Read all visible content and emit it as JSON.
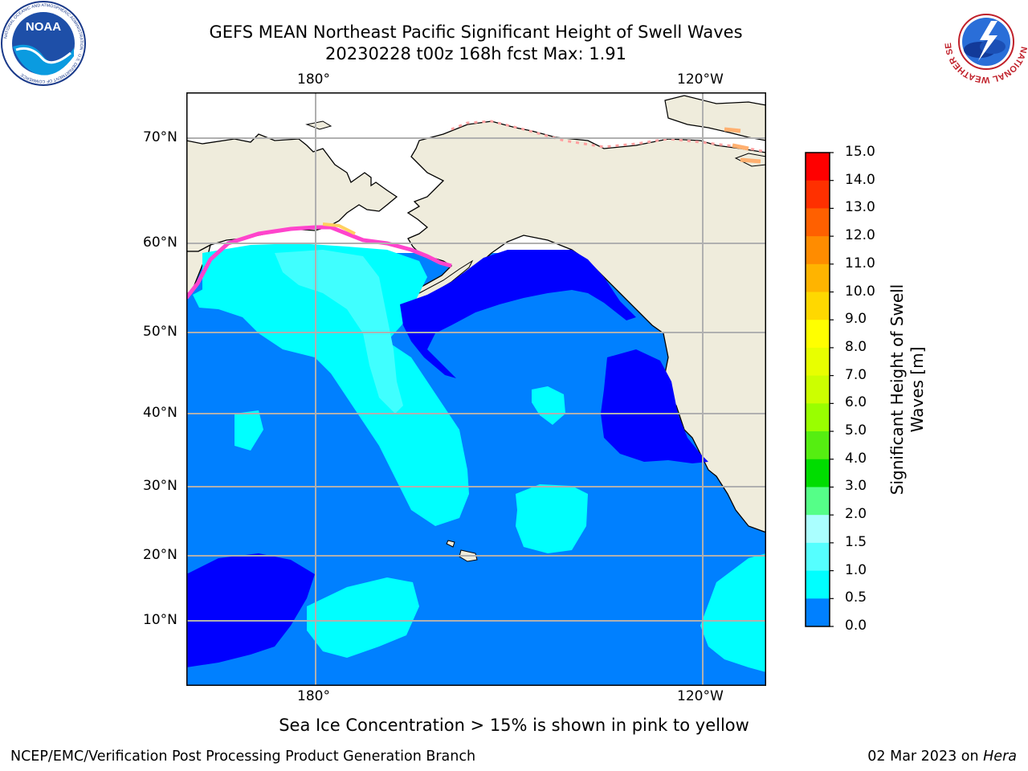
{
  "header": {
    "title_line1": "GEFS MEAN Northeast Pacific Significant Height of Swell Waves",
    "title_line2": "20230228 t00z 168h fcst   Max: 1.91"
  },
  "logos": {
    "noaa_text": "NOAA",
    "noaa_ring_text": "NATIONAL OCEANIC AND ATMOSPHERIC ADMINISTRATION · U.S. DEPARTMENT OF COMMERCE",
    "nws_ring_text": "NATIONAL WEATHER SERVICE"
  },
  "map": {
    "lon_labels_top": [
      "180°",
      "120°W"
    ],
    "lon_labels_bottom": [
      "180°",
      "120°W"
    ],
    "lat_labels": [
      "70°N",
      "60°N",
      "50°N",
      "40°N",
      "30°N",
      "20°N",
      "10°N"
    ],
    "colors": {
      "land": "#efecdc",
      "ocean_0_0_5": "#0000ff",
      "ocean_0_5_1_0": "#0080ff",
      "ocean_1_0_1_5": "#00ffff",
      "ocean_1_5_2_0": "#40ffff",
      "ice_low": "#ff44cc",
      "ice_high": "#ffd060",
      "grid": "#b0b0b0"
    }
  },
  "colorbar": {
    "label_line1": "Significant Height of Swell",
    "label_line2": "Waves [m]",
    "ticks": [
      "15.0",
      "14.0",
      "13.0",
      "12.0",
      "11.0",
      "10.0",
      "9.0",
      "8.0",
      "7.0",
      "6.0",
      "5.0",
      "4.0",
      "3.0",
      "2.0",
      "1.5",
      "1.0",
      "0.5",
      "0.0"
    ],
    "colors_top_down": [
      "#ff0000",
      "#ff3000",
      "#ff6000",
      "#ff8c00",
      "#ffb400",
      "#ffd800",
      "#ffff00",
      "#e8ff00",
      "#ccff00",
      "#99ff00",
      "#55ee11",
      "#00dd00",
      "#55ff88",
      "#aaffff",
      "#55ffff",
      "#00ffff",
      "#0080ff",
      "#0000ff"
    ]
  },
  "footer": {
    "ice_note": "Sea Ice Concentration > 15% is shown in pink to yellow",
    "credit": "NCEP/EMC/Verification Post Processing Product Generation Branch",
    "date_prefix": "02 Mar 2023 on ",
    "host": "Hera"
  }
}
